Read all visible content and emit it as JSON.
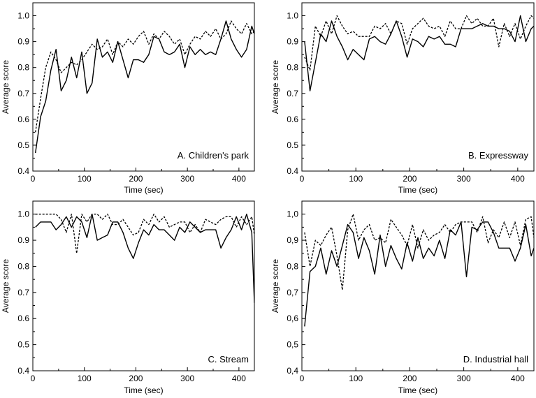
{
  "chart_data": [
    {
      "type": "line",
      "label": "A. Children's park",
      "xlabel": "Time (sec)",
      "ylabel": "Average score",
      "xlim": [
        0,
        430
      ],
      "ylim": [
        0.4,
        1.05
      ],
      "xticks": [
        "0",
        "100",
        "200",
        "300",
        "400"
      ],
      "yticks": [
        "0.4",
        "0.5",
        "0.6",
        "0.7",
        "0.8",
        "0.9",
        "1.0"
      ],
      "series": [
        {
          "style": "solid",
          "x": [
            5,
            15,
            25,
            35,
            45,
            55,
            65,
            75,
            85,
            95,
            105,
            115,
            125,
            135,
            145,
            155,
            165,
            175,
            185,
            195,
            205,
            215,
            225,
            235,
            245,
            255,
            265,
            275,
            285,
            295,
            305,
            315,
            325,
            335,
            345,
            355,
            365,
            375,
            385,
            395,
            405,
            415,
            425,
            430
          ],
          "y": [
            0.47,
            0.61,
            0.67,
            0.79,
            0.87,
            0.71,
            0.75,
            0.84,
            0.76,
            0.86,
            0.7,
            0.74,
            0.91,
            0.84,
            0.86,
            0.82,
            0.9,
            0.83,
            0.76,
            0.83,
            0.83,
            0.82,
            0.85,
            0.92,
            0.91,
            0.86,
            0.85,
            0.86,
            0.89,
            0.8,
            0.88,
            0.85,
            0.87,
            0.85,
            0.86,
            0.85,
            0.91,
            0.98,
            0.91,
            0.87,
            0.84,
            0.87,
            0.96,
            0.93
          ]
        },
        {
          "style": "dashed",
          "x": [
            5,
            15,
            25,
            35,
            45,
            55,
            65,
            75,
            85,
            95,
            105,
            115,
            125,
            135,
            145,
            155,
            165,
            175,
            185,
            195,
            205,
            215,
            225,
            235,
            245,
            255,
            265,
            275,
            285,
            295,
            305,
            315,
            325,
            335,
            345,
            355,
            365,
            375,
            385,
            395,
            405,
            415,
            425,
            430
          ],
          "y": [
            0.55,
            0.68,
            0.8,
            0.86,
            0.83,
            0.78,
            0.8,
            0.82,
            0.81,
            0.83,
            0.86,
            0.89,
            0.87,
            0.88,
            0.91,
            0.85,
            0.9,
            0.88,
            0.91,
            0.89,
            0.92,
            0.94,
            0.89,
            0.93,
            0.91,
            0.94,
            0.92,
            0.89,
            0.91,
            0.85,
            0.89,
            0.92,
            0.91,
            0.94,
            0.92,
            0.95,
            0.91,
            0.93,
            0.98,
            0.95,
            0.93,
            0.97,
            0.93,
            0.94
          ]
        }
      ]
    },
    {
      "type": "line",
      "label": "B. Expressway",
      "xlabel": "Time (sec)",
      "ylabel": "Average score",
      "xlim": [
        0,
        430
      ],
      "ylim": [
        0.4,
        1.05
      ],
      "xticks": [
        "0",
        "100",
        "200",
        "300",
        "400"
      ],
      "yticks": [
        "0.4",
        "0.5",
        "0.6",
        "0.7",
        "0.8",
        "0.9",
        "1.0"
      ],
      "series": [
        {
          "style": "solid",
          "x": [
            5,
            15,
            25,
            35,
            45,
            55,
            65,
            75,
            85,
            95,
            105,
            115,
            125,
            135,
            145,
            155,
            165,
            175,
            185,
            195,
            205,
            215,
            225,
            235,
            245,
            255,
            265,
            275,
            285,
            295,
            305,
            315,
            325,
            335,
            345,
            355,
            365,
            375,
            385,
            395,
            405,
            415,
            425,
            430
          ],
          "y": [
            0.9,
            0.71,
            0.82,
            0.93,
            0.9,
            0.98,
            0.92,
            0.88,
            0.83,
            0.87,
            0.85,
            0.83,
            0.91,
            0.92,
            0.9,
            0.89,
            0.93,
            0.98,
            0.92,
            0.84,
            0.91,
            0.9,
            0.88,
            0.92,
            0.91,
            0.92,
            0.89,
            0.89,
            0.88,
            0.95,
            0.95,
            0.95,
            0.96,
            0.97,
            0.96,
            0.96,
            0.95,
            0.95,
            0.94,
            0.9,
            1.0,
            0.9,
            0.95,
            0.96
          ]
        },
        {
          "style": "dashed",
          "x": [
            5,
            15,
            25,
            35,
            45,
            55,
            65,
            75,
            85,
            95,
            105,
            115,
            125,
            135,
            145,
            155,
            165,
            175,
            185,
            195,
            205,
            215,
            225,
            235,
            245,
            255,
            265,
            275,
            285,
            295,
            305,
            315,
            325,
            335,
            345,
            355,
            365,
            375,
            385,
            395,
            405,
            415,
            425,
            430
          ],
          "y": [
            0.84,
            0.79,
            0.96,
            0.92,
            0.98,
            0.93,
            1.0,
            0.96,
            0.93,
            0.94,
            0.92,
            0.92,
            0.92,
            0.96,
            0.95,
            0.97,
            0.93,
            0.98,
            0.97,
            0.89,
            0.95,
            0.97,
            0.99,
            0.96,
            0.95,
            0.96,
            0.92,
            0.98,
            0.95,
            0.95,
            1.0,
            0.97,
            0.99,
            0.96,
            0.96,
            0.99,
            0.88,
            0.97,
            0.92,
            0.97,
            0.91,
            0.96,
            1.0,
            0.99
          ]
        }
      ]
    },
    {
      "type": "line",
      "label": "C. Stream",
      "xlabel": "Time (sec)",
      "ylabel": "Average score",
      "xlim": [
        0,
        430
      ],
      "ylim": [
        0.4,
        1.05
      ],
      "xticks": [
        "0",
        "100",
        "200",
        "300",
        "400"
      ],
      "yticks": [
        "0.4",
        "0.5",
        "0.6",
        "0.7",
        "0.8",
        "0.9",
        "1.0"
      ],
      "series": [
        {
          "style": "solid",
          "x": [
            5,
            15,
            25,
            35,
            45,
            55,
            65,
            75,
            85,
            95,
            105,
            115,
            125,
            135,
            145,
            155,
            165,
            175,
            185,
            195,
            205,
            215,
            225,
            235,
            245,
            255,
            265,
            275,
            285,
            295,
            305,
            315,
            325,
            335,
            345,
            355,
            365,
            375,
            385,
            395,
            405,
            415,
            425,
            430
          ],
          "y": [
            0.95,
            0.97,
            0.97,
            0.97,
            0.94,
            0.96,
            0.99,
            0.95,
            0.99,
            0.97,
            0.91,
            1.0,
            0.9,
            0.91,
            0.92,
            0.97,
            0.97,
            0.93,
            0.87,
            0.83,
            0.89,
            0.94,
            0.92,
            0.96,
            0.94,
            0.94,
            0.92,
            0.9,
            0.95,
            0.93,
            0.97,
            0.95,
            0.93,
            0.94,
            0.94,
            0.94,
            0.87,
            0.91,
            0.94,
            0.99,
            0.94,
            1.0,
            0.93,
            0.66
          ]
        },
        {
          "style": "dashed",
          "x": [
            5,
            15,
            25,
            35,
            45,
            55,
            65,
            75,
            85,
            95,
            105,
            115,
            125,
            135,
            145,
            155,
            165,
            175,
            185,
            195,
            205,
            215,
            225,
            235,
            245,
            255,
            265,
            275,
            285,
            295,
            305,
            315,
            325,
            335,
            345,
            355,
            365,
            375,
            385,
            395,
            405,
            415,
            425,
            430
          ],
          "y": [
            1.0,
            1.0,
            1.0,
            1.0,
            1.0,
            0.98,
            0.93,
            1.0,
            0.85,
            1.0,
            0.97,
            1.0,
            1.0,
            0.98,
            1.0,
            0.96,
            0.96,
            0.98,
            0.95,
            0.92,
            0.93,
            0.98,
            0.96,
            1.0,
            0.97,
            0.99,
            0.95,
            0.96,
            0.97,
            0.97,
            0.93,
            0.96,
            0.93,
            0.98,
            0.97,
            0.96,
            0.98,
            0.99,
            0.99,
            0.95,
            0.99,
            0.96,
            0.99,
            0.92
          ]
        }
      ]
    },
    {
      "type": "line",
      "label": "D. Industrial hall",
      "xlabel": "Time (sec)",
      "ylabel": "Average score",
      "xlim": [
        0,
        430
      ],
      "ylim": [
        0.4,
        1.05
      ],
      "xticks": [
        "0",
        "100",
        "200",
        "300",
        "400"
      ],
      "yticks": [
        "0,4",
        "0,5",
        "0,6",
        "0,7",
        "0,8",
        "0,9",
        "1,0"
      ],
      "series": [
        {
          "style": "solid",
          "x": [
            5,
            15,
            25,
            35,
            45,
            55,
            65,
            75,
            85,
            95,
            105,
            115,
            125,
            135,
            145,
            155,
            165,
            175,
            185,
            195,
            205,
            215,
            225,
            235,
            245,
            255,
            265,
            275,
            285,
            295,
            305,
            315,
            325,
            335,
            345,
            355,
            365,
            375,
            385,
            395,
            405,
            415,
            425,
            430
          ],
          "y": [
            0.57,
            0.78,
            0.8,
            0.87,
            0.77,
            0.86,
            0.8,
            0.88,
            0.96,
            0.93,
            0.83,
            0.91,
            0.86,
            0.77,
            0.92,
            0.8,
            0.88,
            0.83,
            0.79,
            0.89,
            0.82,
            0.91,
            0.83,
            0.87,
            0.84,
            0.9,
            0.83,
            0.94,
            0.92,
            0.97,
            0.76,
            0.95,
            0.94,
            0.97,
            0.97,
            0.93,
            0.87,
            0.87,
            0.87,
            0.82,
            0.87,
            0.96,
            0.84,
            0.87
          ]
        },
        {
          "style": "dashed",
          "x": [
            5,
            15,
            25,
            35,
            45,
            55,
            65,
            75,
            85,
            95,
            105,
            115,
            125,
            135,
            145,
            155,
            165,
            175,
            185,
            195,
            205,
            215,
            225,
            235,
            245,
            255,
            265,
            275,
            285,
            295,
            305,
            315,
            325,
            335,
            345,
            355,
            365,
            375,
            385,
            395,
            405,
            415,
            425,
            430
          ],
          "y": [
            0.93,
            0.8,
            0.9,
            0.88,
            0.92,
            0.95,
            0.84,
            0.71,
            0.94,
            1.0,
            0.9,
            0.94,
            0.96,
            0.9,
            0.91,
            0.89,
            0.98,
            0.95,
            0.92,
            0.88,
            0.96,
            0.87,
            0.94,
            0.9,
            0.92,
            0.93,
            0.96,
            0.93,
            0.96,
            0.97,
            0.97,
            0.97,
            0.93,
            0.99,
            0.89,
            0.94,
            0.91,
            0.97,
            0.91,
            0.97,
            0.88,
            0.98,
            0.99,
            0.91
          ]
        }
      ]
    }
  ]
}
